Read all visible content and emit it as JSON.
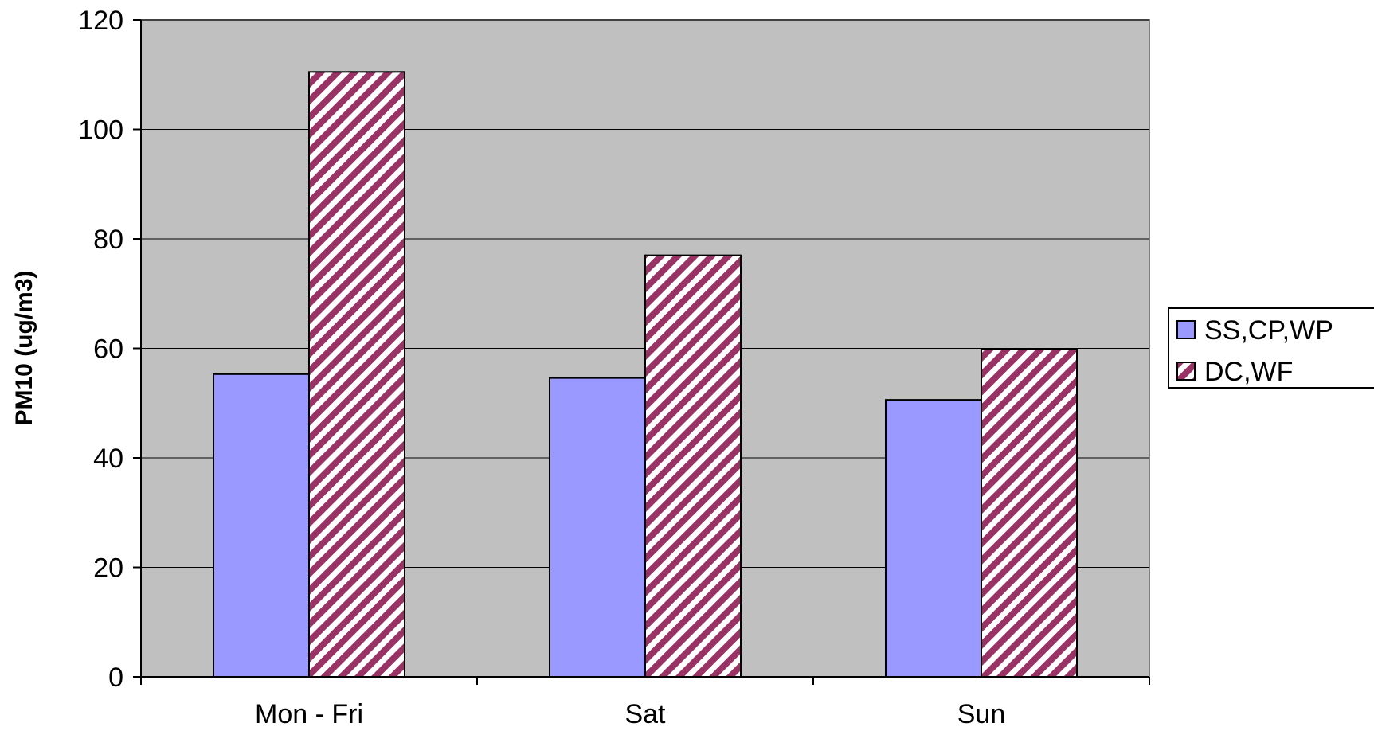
{
  "chart_data": {
    "type": "bar",
    "title": "",
    "xlabel": "",
    "ylabel": "PM10 (ug/m3)",
    "categories": [
      "Mon - Fri",
      "Sat",
      "Sun"
    ],
    "series": [
      {
        "name": "SS,CP,WP",
        "values": [
          55.3,
          54.6,
          50.6
        ],
        "color": "#9999ff",
        "pattern": "solid"
      },
      {
        "name": "DC,WF",
        "values": [
          110.5,
          77.0,
          59.8
        ],
        "color": "#993366",
        "pattern": "diagonal-hatch"
      }
    ],
    "ylim": [
      0,
      120
    ],
    "yticks": [
      0,
      20,
      40,
      60,
      80,
      100,
      120
    ],
    "grid": true,
    "legend_position": "right",
    "plot_background": "#c0c0c0"
  }
}
